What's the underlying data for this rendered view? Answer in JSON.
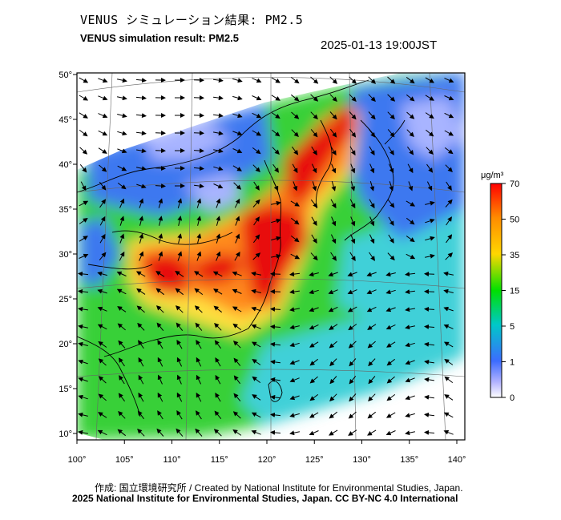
{
  "header": {
    "title_jp": "VENUS シミュレーション結果: PM2.5",
    "title_en": "VENUS simulation result: PM2.5",
    "timestamp": "2025-01-13 19:00JST"
  },
  "footer": {
    "credit_jp": "作成: 国立環境研究所 / Created by National Institute for Environmental Studies, Japan.",
    "credit_en": "2025 National Institute for Environmental Studies, Japan. CC BY-NC 4.0 International"
  },
  "map": {
    "lon_ticks": [
      "100°",
      "105°",
      "110°",
      "115°",
      "120°",
      "125°",
      "130°",
      "135°",
      "140°"
    ],
    "lat_ticks": [
      "50°",
      "45°",
      "40°",
      "35°",
      "30°",
      "25°",
      "20°",
      "15°",
      "10°"
    ],
    "lon_values": [
      100,
      105,
      110,
      115,
      120,
      125,
      130,
      135,
      140
    ],
    "lat_values": [
      50,
      45,
      40,
      35,
      30,
      25,
      20,
      15,
      10
    ]
  },
  "colorbar": {
    "unit": "μg/m³",
    "labels": [
      "70",
      "50",
      "35",
      "15",
      "5",
      "1",
      "0"
    ],
    "colors": [
      "#ff0000",
      "#ff8c00",
      "#ffd700",
      "#00e000",
      "#00c8c8",
      "#3c6cff",
      "#b4b4ff",
      "#ffffff"
    ]
  },
  "colors": {
    "high": "#e81010",
    "orange": "#ff8a1a",
    "yellow": "#ffe040",
    "green": "#38d038",
    "cyan": "#40d0d8",
    "blue": "#3c78f0",
    "lightblue": "#a8b4ff"
  }
}
